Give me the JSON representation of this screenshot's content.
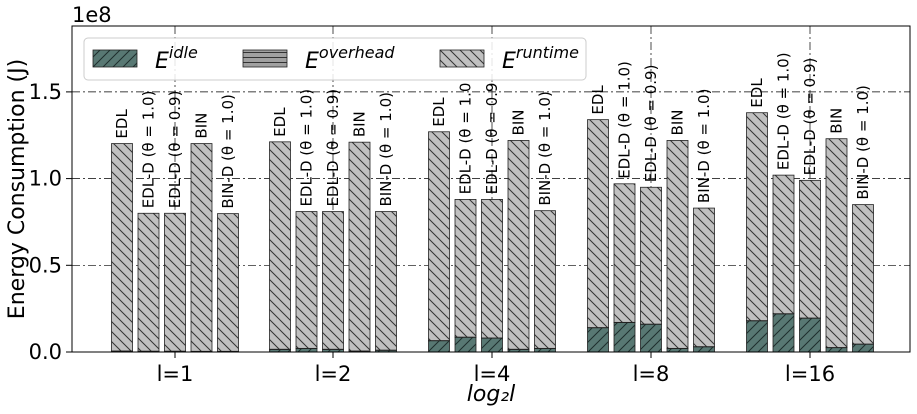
{
  "chart_data": {
    "type": "bar",
    "stacked": true,
    "offset_text": "1e8",
    "xlabel": "log₂l",
    "ylabel": "Energy Consumption (J)",
    "ylim": [
      0,
      1.88
    ],
    "yticks": [
      0.0,
      0.5,
      1.0,
      1.5
    ],
    "ytick_labels": [
      "0.0",
      "0.5",
      "1.0",
      "1.5"
    ],
    "grid": "dash-dot, major y ticks and group centers",
    "legend_position": "top-left",
    "groups": [
      "l=1",
      "l=2",
      "l=4",
      "l=8",
      "l=16"
    ],
    "group_tick_labels": [
      "l=1",
      "l=2",
      "l=4",
      "l=8",
      "l=16"
    ],
    "bar_labels": [
      [
        "EDL",
        "EDL-D (θ = 1.0)",
        "EDL-D (θ = 0.9)",
        "BIN",
        "BIN-D (θ = 1.0)"
      ],
      [
        "EDL",
        "EDL-D (θ = 1.0)",
        "EDL-D (θ = 0.9)",
        "BIN",
        "BIN-D (θ = 1.0)"
      ],
      [
        "EDL",
        "EDL-D (θ = 1.0",
        "EDL-D (θ = 0.9",
        "BIN",
        "BIN-D (θ = 1.0)"
      ],
      [
        "EDL",
        "EDL-D (θ = 1.0)",
        "EDL-D (θ = 0.9)",
        "BIN",
        "BIN-D (θ = 1.0)"
      ],
      [
        "EDL",
        "EDL-D (θ = 1.0)",
        "EDL-D (θ = 0.9)",
        "BIN",
        "BIN-D (θ = 1.0)"
      ]
    ],
    "series": [
      {
        "name": "E^idle",
        "legend_base": "E",
        "legend_sup": "idle",
        "color": "#587873",
        "hatch": "/",
        "values": [
          [
            0.005,
            0.004,
            0.004,
            0.003,
            0.003
          ],
          [
            0.015,
            0.02,
            0.015,
            0.005,
            0.01
          ],
          [
            0.065,
            0.085,
            0.08,
            0.015,
            0.02
          ],
          [
            0.14,
            0.17,
            0.16,
            0.02,
            0.03
          ],
          [
            0.18,
            0.22,
            0.195,
            0.025,
            0.045
          ]
        ]
      },
      {
        "name": "E^overhead",
        "legend_base": "E",
        "legend_sup": "overhead",
        "color": "#a0a0a0",
        "hatch": "-",
        "values": [
          [
            0.001,
            0.001,
            0.001,
            0.001,
            0.001
          ],
          [
            0.001,
            0.001,
            0.001,
            0.001,
            0.001
          ],
          [
            0.001,
            0.001,
            0.001,
            0.001,
            0.001
          ],
          [
            0.001,
            0.001,
            0.001,
            0.001,
            0.001
          ],
          [
            0.001,
            0.001,
            0.001,
            0.001,
            0.001
          ]
        ]
      },
      {
        "name": "E^runtime",
        "legend_base": "E",
        "legend_sup": "runtime",
        "color": "#c0c0c0",
        "hatch": "\\",
        "values": [
          [
            1.196,
            0.795,
            0.795,
            1.198,
            0.794
          ],
          [
            1.196,
            0.789,
            0.794,
            1.204,
            0.799
          ],
          [
            1.204,
            0.794,
            0.799,
            1.204,
            0.794
          ],
          [
            1.199,
            0.799,
            0.789,
            1.199,
            0.799
          ],
          [
            1.199,
            0.799,
            0.794,
            1.204,
            0.804
          ]
        ]
      }
    ]
  }
}
